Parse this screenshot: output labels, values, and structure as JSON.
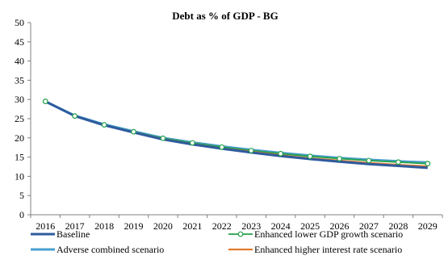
{
  "chart_data": {
    "type": "line",
    "title": "Debt as % of GDP - BG",
    "xlabel": "",
    "ylabel": "",
    "x": [
      "2016",
      "2017",
      "2018",
      "2019",
      "2020",
      "2021",
      "2022",
      "2023",
      "2024",
      "2025",
      "2026",
      "2027",
      "2028",
      "2029"
    ],
    "ylim": [
      0,
      50
    ],
    "yticks": [
      "0",
      "5",
      "10",
      "15",
      "20",
      "25",
      "30",
      "35",
      "40",
      "45",
      "50"
    ],
    "grid": false,
    "legend_position": "bottom",
    "series": [
      {
        "name": "Baseline",
        "color": "#2e5b9e",
        "marker": "none",
        "values": [
          29.5,
          25.7,
          23.3,
          21.4,
          19.6,
          18.3,
          17.2,
          16.2,
          15.3,
          14.5,
          13.8,
          13.2,
          12.7,
          12.2
        ]
      },
      {
        "name": "Enhanced lower GDP growth scenario",
        "color": "#23a04a",
        "marker": "circle",
        "values": [
          29.5,
          25.7,
          23.4,
          21.6,
          19.9,
          18.7,
          17.6,
          16.7,
          15.9,
          15.2,
          14.6,
          14.1,
          13.7,
          13.3
        ]
      },
      {
        "name": "Adverse combined scenario",
        "color": "#4aa0cf",
        "marker": "none",
        "values": [
          29.5,
          25.8,
          23.5,
          21.7,
          20.0,
          18.8,
          17.8,
          16.9,
          16.1,
          15.4,
          14.8,
          14.3,
          13.9,
          13.6
        ]
      },
      {
        "name": "Enhanced higher interest rate scenario",
        "color": "#e07b30",
        "marker": "none",
        "values": [
          29.5,
          25.7,
          23.3,
          21.5,
          19.7,
          18.4,
          17.3,
          16.4,
          15.5,
          14.7,
          14.1,
          13.5,
          13.0,
          12.6
        ]
      }
    ]
  }
}
